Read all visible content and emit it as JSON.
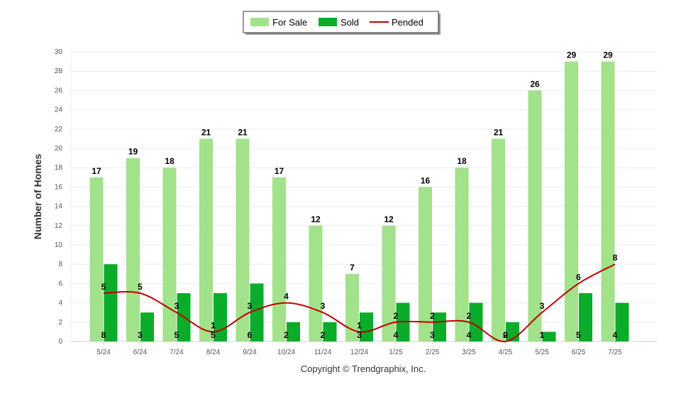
{
  "chart_data": {
    "type": "bar",
    "categories": [
      "5/24",
      "6/24",
      "7/24",
      "8/24",
      "9/24",
      "10/24",
      "11/24",
      "12/24",
      "1/25",
      "2/25",
      "3/25",
      "4/25",
      "5/25",
      "6/25",
      "7/25"
    ],
    "series": [
      {
        "name": "For Sale",
        "type": "bar",
        "values": [
          17,
          19,
          18,
          21,
          21,
          17,
          12,
          7,
          12,
          16,
          18,
          21,
          26,
          29,
          29
        ]
      },
      {
        "name": "Sold",
        "type": "bar",
        "values": [
          8,
          3,
          5,
          5,
          6,
          2,
          2,
          3,
          4,
          3,
          4,
          2,
          1,
          5,
          4
        ]
      },
      {
        "name": "Pended",
        "type": "line",
        "values": [
          5,
          5,
          3,
          1,
          3,
          4,
          3,
          1,
          2,
          2,
          2,
          0,
          3,
          6,
          8
        ]
      }
    ],
    "title": "",
    "xlabel": "",
    "ylabel": "Number of Homes",
    "ylim": [
      0,
      30
    ],
    "yticks": [
      0,
      2,
      4,
      6,
      8,
      10,
      12,
      14,
      16,
      18,
      20,
      22,
      24,
      26,
      28,
      30
    ],
    "grid": true,
    "legend_position": "top-center",
    "colors": {
      "for_sale": "#a1e28a",
      "sold": "#0aac2a",
      "pended": "#c00000"
    }
  },
  "footer": {
    "copyright": "Copyright © Trendgraphix, Inc."
  }
}
